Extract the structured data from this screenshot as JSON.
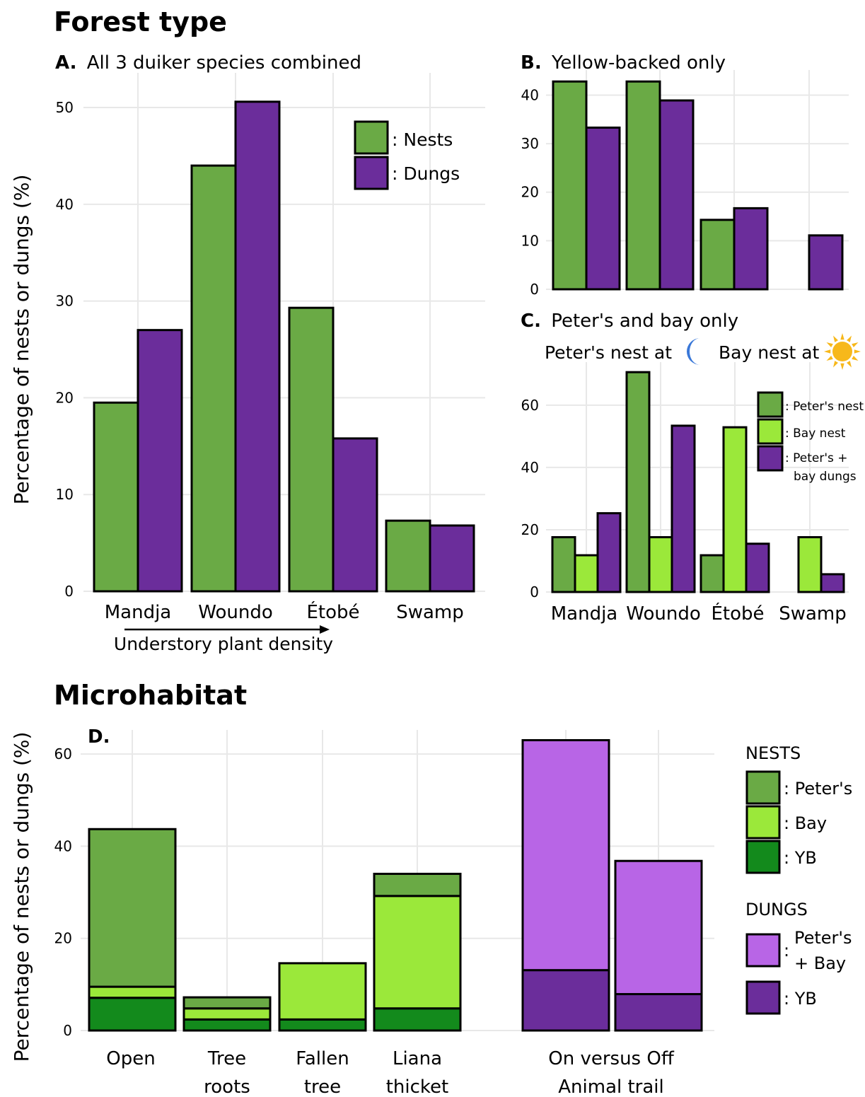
{
  "colors": {
    "nests": "#6aaa45",
    "dungs": "#6b2d9b",
    "peters_nest": "#6aaa45",
    "bay_nest": "#9be83a",
    "yb_nest": "#138a1c",
    "peters_bay_dungs": "#b865e6",
    "yb_dungs": "#6b2d9b",
    "moon": "#3a78d8",
    "sun": "#f7b81b"
  },
  "headers": {
    "forest_type": "Forest type",
    "microhabitat": "Microhabitat"
  },
  "y_axis_label": "Percentage of nests or dungs (%)",
  "panel_c_notes": {
    "peters": "Peter's nest at",
    "bay": "Bay nest at",
    "moon_icon": "moon-icon",
    "sun_icon": "sun-icon"
  },
  "understory_label": "Understory plant density",
  "chart_data": [
    {
      "id": "A",
      "type": "bar",
      "title_letter": "A.",
      "title": "All 3 duiker species combined",
      "categories": [
        "Mandja",
        "Woundo",
        "Étobé",
        "Swamp"
      ],
      "series": [
        {
          "name": ": Nests",
          "values": [
            19.5,
            44,
            29.3,
            7.3
          ]
        },
        {
          "name": ": Dungs",
          "values": [
            27,
            50.6,
            15.8,
            6.8
          ]
        }
      ],
      "yticks": [
        0,
        10,
        20,
        30,
        40,
        50
      ],
      "ylim": [
        0,
        53
      ],
      "legend": "top-right",
      "grid": true
    },
    {
      "id": "B",
      "type": "bar",
      "title_letter": "B.",
      "title": "Yellow-backed only",
      "categories": [
        "Mandja",
        "Woundo",
        "Étobé",
        "Swamp"
      ],
      "series": [
        {
          "values": [
            42.8,
            42.8,
            14.3,
            0
          ]
        },
        {
          "values": [
            33.3,
            38.9,
            16.7,
            11.1
          ]
        }
      ],
      "yticks": [
        0,
        10,
        20,
        30,
        40
      ],
      "ylim": [
        0,
        44
      ],
      "grid": true
    },
    {
      "id": "C",
      "type": "bar",
      "title_letter": "C.",
      "title": "Peter's  and bay only",
      "categories": [
        "Mandja",
        "Woundo",
        "Étobé",
        "Swamp"
      ],
      "series": [
        {
          "name": ": Peter's nest",
          "values": [
            17.6,
            70.6,
            11.8,
            0
          ]
        },
        {
          "name": ": Bay nest",
          "values": [
            11.8,
            17.6,
            52.9,
            17.6
          ]
        },
        {
          "name": ": Peter's + bay dungs",
          "name_lines": [
            ": Peter's +",
            "bay dungs"
          ],
          "values": [
            25.3,
            53.4,
            15.5,
            5.7
          ]
        }
      ],
      "yticks": [
        0,
        20,
        40,
        60
      ],
      "ylim": [
        0,
        72
      ],
      "legend": "top-right",
      "grid": true
    },
    {
      "id": "D",
      "type": "bar",
      "stacked": true,
      "title_letter": "D.",
      "categories": [
        "Open",
        "Tree roots",
        "Fallen tree",
        "Liana thicket",
        "On",
        "Off"
      ],
      "category_labels": [
        [
          "Open"
        ],
        [
          "Tree",
          "roots"
        ],
        [
          "Fallen",
          "tree"
        ],
        [
          "Liana",
          "thicket"
        ]
      ],
      "trail_label": [
        "On versus Off",
        "Animal trail"
      ],
      "series": [
        {
          "name": ": YB",
          "group": "nests",
          "values": [
            7.1,
            2.4,
            2.4,
            4.8,
            0,
            0
          ]
        },
        {
          "name": ": Bay",
          "group": "nests",
          "values": [
            2.4,
            2.4,
            12.2,
            24.4,
            0,
            0
          ]
        },
        {
          "name": ": Peter's",
          "group": "nests",
          "values": [
            34.2,
            2.4,
            0,
            4.8,
            0,
            0
          ]
        },
        {
          "name": ": YB",
          "group": "dungs",
          "values": [
            0,
            0,
            0,
            0,
            13.1,
            7.9
          ]
        },
        {
          "name": ": Peter's + Bay",
          "group": "dungs",
          "name_lines": [
            "Peter's",
            "+ Bay"
          ],
          "values": [
            0,
            0,
            0,
            0,
            49.9,
            28.9
          ]
        }
      ],
      "legend_groups": [
        "NESTS",
        "DUNGS"
      ],
      "yticks": [
        0,
        20,
        40,
        60
      ],
      "ylim": [
        0,
        64
      ],
      "legend": "right",
      "grid": true
    }
  ]
}
